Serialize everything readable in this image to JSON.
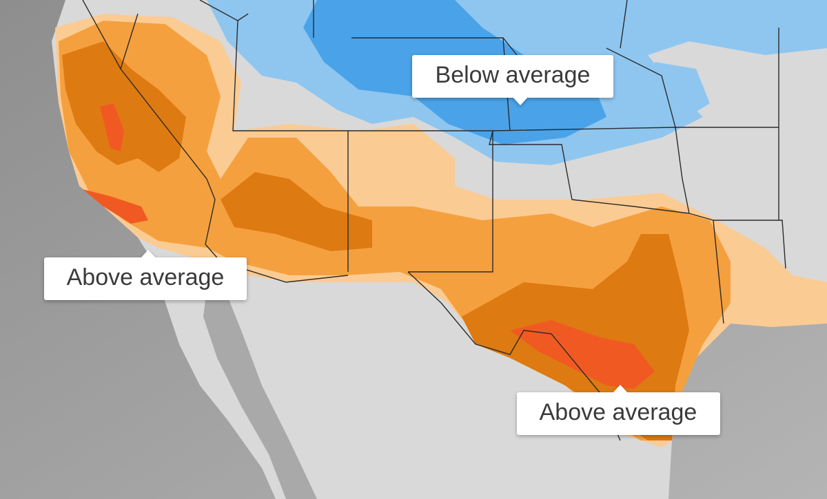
{
  "callouts": [
    {
      "label": "Below average"
    },
    {
      "label": "Above average"
    },
    {
      "label": "Above average"
    }
  ]
}
